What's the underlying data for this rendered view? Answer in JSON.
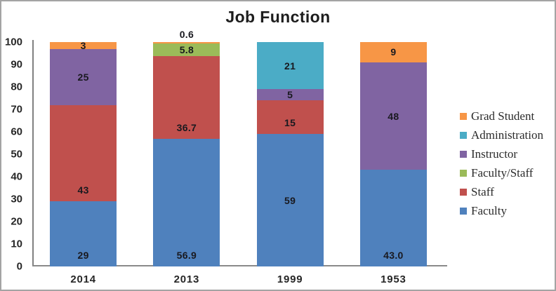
{
  "window": {
    "background": "#ffffff",
    "border_color": "#a4a4a4"
  },
  "chart_data": {
    "type": "bar",
    "variant": "stacked-column",
    "title": "Job Function",
    "xlabel": "",
    "ylabel": "",
    "categories": [
      "2014",
      "2013",
      "1999",
      "1953"
    ],
    "yaxis": {
      "min": 0,
      "max": 100,
      "step": 10
    },
    "grid": false,
    "series": [
      {
        "name": "Faculty",
        "values": [
          29,
          56.9,
          59,
          43.0
        ]
      },
      {
        "name": "Staff",
        "values": [
          43,
          36.7,
          15,
          null
        ]
      },
      {
        "name": "Faculty/Staff",
        "values": [
          null,
          5.8,
          null,
          null
        ]
      },
      {
        "name": "Instructor",
        "values": [
          25,
          null,
          5,
          48
        ]
      },
      {
        "name": "Administration",
        "values": [
          null,
          null,
          21,
          null
        ]
      },
      {
        "name": "Grad Student",
        "values": [
          3,
          0.6,
          null,
          9
        ]
      }
    ],
    "series_colors": {
      "Faculty": "#4F81BD",
      "Staff": "#C0504D",
      "Faculty/Staff": "#9BBB59",
      "Instructor": "#8064A2",
      "Administration": "#4BACC6",
      "Grad Student": "#F79646"
    },
    "stack_order_bottom_to_top": [
      "Faculty",
      "Staff",
      "Faculty/Staff",
      "Instructor",
      "Administration",
      "Grad Student"
    ],
    "bars": [
      {
        "category": "2014",
        "segments": [
          {
            "series": "Faculty",
            "value": 29,
            "label": "29",
            "label_pos": "base"
          },
          {
            "series": "Staff",
            "value": 43,
            "label": "43",
            "label_pos": "base"
          },
          {
            "series": "Instructor",
            "value": 25,
            "label": "25",
            "label_pos": "center"
          },
          {
            "series": "Grad Student",
            "value": 3,
            "label": "3",
            "label_pos": "center"
          }
        ]
      },
      {
        "category": "2013",
        "segments": [
          {
            "series": "Faculty",
            "value": 56.9,
            "label": "56.9",
            "label_pos": "base"
          },
          {
            "series": "Staff",
            "value": 36.7,
            "label": "36.7",
            "label_pos": "base"
          },
          {
            "series": "Faculty/Staff",
            "value": 5.8,
            "label": "5.8",
            "label_pos": "center"
          },
          {
            "series": "Grad Student",
            "value": 0.6,
            "label": "0.6",
            "label_pos": "above"
          }
        ]
      },
      {
        "category": "1999",
        "segments": [
          {
            "series": "Faculty",
            "value": 59,
            "label": "59",
            "label_pos": "center"
          },
          {
            "series": "Staff",
            "value": 15,
            "label": "15",
            "label_pos": "base"
          },
          {
            "series": "Instructor",
            "value": 5,
            "label": "5",
            "label_pos": "center"
          },
          {
            "series": "Administration",
            "value": 21,
            "label": "21",
            "label_pos": "center"
          }
        ]
      },
      {
        "category": "1953",
        "segments": [
          {
            "series": "Faculty",
            "value": 43.0,
            "label": "43.0",
            "label_pos": "base"
          },
          {
            "series": "Instructor",
            "value": 48,
            "label": "48",
            "label_pos": "center"
          },
          {
            "series": "Grad Student",
            "value": 9,
            "label": "9",
            "label_pos": "center"
          }
        ]
      }
    ],
    "legend": {
      "position": "right",
      "items": [
        {
          "label": "Grad Student",
          "color": "#F79646"
        },
        {
          "label": "Administration",
          "color": "#4BACC6"
        },
        {
          "label": "Instructor",
          "color": "#8064A2"
        },
        {
          "label": "Faculty/Staff",
          "color": "#9BBB59"
        },
        {
          "label": "Staff",
          "color": "#C0504D"
        },
        {
          "label": "Faculty",
          "color": "#4F81BD"
        }
      ]
    }
  }
}
